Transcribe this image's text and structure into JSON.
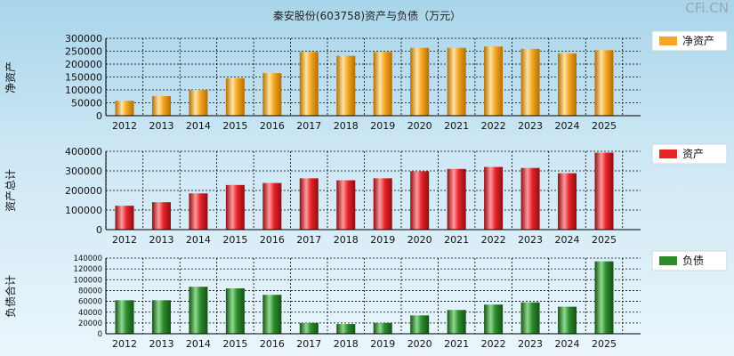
{
  "title": "秦安股份(603758)资产与负债（万元）",
  "watermark": "CFi.CN",
  "colors": {
    "net_assets": "#f5a623",
    "total_assets": "#e8242b",
    "liabilities": "#2e8b2e"
  },
  "chart_data": [
    {
      "type": "bar",
      "title": "秦安股份(603758)资产与负债（万元）",
      "ylabel": "净资产",
      "legend": "净资产",
      "legend_position": "top-right",
      "categories": [
        "2012",
        "2013",
        "2014",
        "2015",
        "2016",
        "2017",
        "2018",
        "2019",
        "2020",
        "2021",
        "2022",
        "2023",
        "2024",
        "2025"
      ],
      "values": [
        58000,
        76000,
        100000,
        145000,
        165000,
        247000,
        232000,
        247000,
        263000,
        263000,
        268000,
        259000,
        241000,
        254000
      ],
      "ylim": [
        0,
        300000
      ],
      "yticks": [
        "300000",
        "250000",
        "200000",
        "150000",
        "100000",
        "50000",
        "0"
      ],
      "grid": true
    },
    {
      "type": "bar",
      "ylabel": "资产总计",
      "legend": "资产",
      "legend_position": "top-right",
      "categories": [
        "2012",
        "2013",
        "2014",
        "2015",
        "2016",
        "2017",
        "2018",
        "2019",
        "2020",
        "2021",
        "2022",
        "2023",
        "2024",
        "2025"
      ],
      "values": [
        122000,
        140000,
        185000,
        228000,
        238000,
        262000,
        252000,
        262000,
        298000,
        310000,
        320000,
        315000,
        288000,
        393000
      ],
      "ylim": [
        0,
        400000
      ],
      "yticks": [
        "400000",
        "300000",
        "200000",
        "100000",
        "0"
      ],
      "grid": true
    },
    {
      "type": "bar",
      "ylabel": "负债合计",
      "legend": "负债",
      "legend_position": "top-right",
      "categories": [
        "2012",
        "2013",
        "2014",
        "2015",
        "2016",
        "2017",
        "2018",
        "2019",
        "2020",
        "2021",
        "2022",
        "2023",
        "2024",
        "2025"
      ],
      "values": [
        62000,
        62000,
        87000,
        84000,
        72000,
        20000,
        18000,
        20000,
        34000,
        44000,
        54000,
        58000,
        50000,
        134000
      ],
      "ylim": [
        0,
        140000
      ],
      "yticks": [
        "140000",
        "120000",
        "100000",
        "80000",
        "60000",
        "40000",
        "20000",
        "0"
      ],
      "grid": true
    }
  ]
}
